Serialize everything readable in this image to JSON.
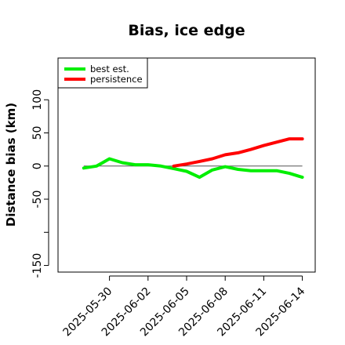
{
  "chart_data": {
    "type": "line",
    "title": "Bias, ice edge",
    "ylabel": "Distance bias (km)",
    "xlabel": "",
    "ylim": [
      -160,
      163
    ],
    "yticks": [
      -150,
      -50,
      0,
      50,
      100
    ],
    "xticks": [
      "2025-05-30",
      "2025-06-02",
      "2025-06-05",
      "2025-06-08",
      "2025-06-11",
      "2025-06-14"
    ],
    "xlim": [
      "2025-05-26",
      "2025-06-15"
    ],
    "reference_line": 0,
    "legend_position": "top-left",
    "series": [
      {
        "name": "best est.",
        "color": "#00ee00",
        "x": [
          "2025-05-28",
          "2025-05-29",
          "2025-05-30",
          "2025-05-31",
          "2025-06-01",
          "2025-06-02",
          "2025-06-03",
          "2025-06-04",
          "2025-06-05",
          "2025-06-06",
          "2025-06-07",
          "2025-06-08",
          "2025-06-09",
          "2025-06-10",
          "2025-06-11",
          "2025-06-12",
          "2025-06-13",
          "2025-06-14"
        ],
        "y": [
          -3,
          0,
          11,
          5,
          2,
          2,
          0,
          -4,
          -8,
          -17,
          -6,
          -1,
          -5,
          -7,
          -7,
          -7,
          -11,
          -17
        ]
      },
      {
        "name": "persistence",
        "color": "#ff0000",
        "x": [
          "2025-06-04",
          "2025-06-05",
          "2025-06-06",
          "2025-06-07",
          "2025-06-08",
          "2025-06-09",
          "2025-06-10",
          "2025-06-11",
          "2025-06-12",
          "2025-06-13",
          "2025-06-14"
        ],
        "y": [
          0,
          3,
          7,
          11,
          17,
          20,
          25,
          31,
          36,
          41,
          41
        ]
      }
    ]
  }
}
